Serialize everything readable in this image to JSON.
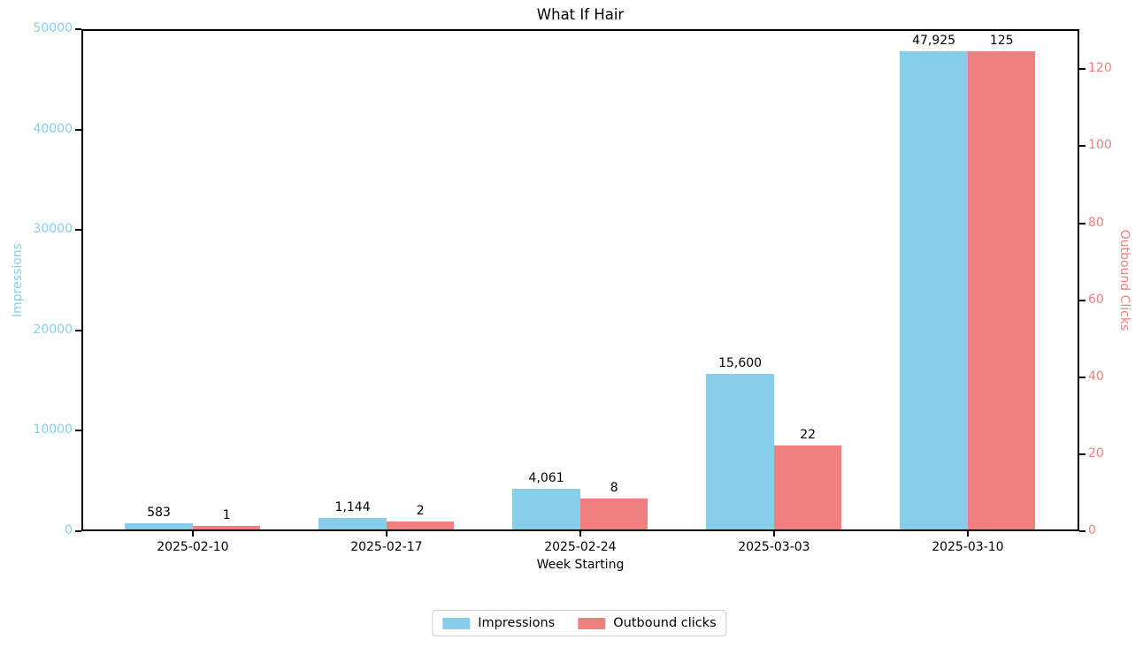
{
  "title": "What If Hair",
  "axes": {
    "x_label": "Week Starting",
    "left": {
      "label": "Impressions",
      "color": "#87CEEB",
      "ticks": [
        "0",
        "10000",
        "20000",
        "30000",
        "40000",
        "50000"
      ],
      "tick_values": [
        0,
        10000,
        20000,
        30000,
        40000,
        50000
      ],
      "max": 50000
    },
    "right": {
      "label": "Outbound Clicks",
      "color": "#F08080",
      "ticks": [
        "0",
        "20",
        "40",
        "60",
        "80",
        "100",
        "120"
      ],
      "tick_values": [
        0,
        20,
        40,
        60,
        80,
        100,
        120
      ],
      "max": 130.4
    }
  },
  "chart_data": {
    "type": "bar",
    "title": "What If Hair",
    "xlabel": "Week Starting",
    "categories": [
      "2025-02-10",
      "2025-02-17",
      "2025-02-24",
      "2025-03-03",
      "2025-03-10"
    ],
    "series": [
      {
        "name": "Impressions",
        "axis": "left",
        "color": "#87CEEB",
        "values": [
          583,
          1144,
          4061,
          15600,
          47925
        ],
        "value_labels": [
          "583",
          "1,144",
          "4,061",
          "15,600",
          "47,925"
        ]
      },
      {
        "name": "Outbound clicks",
        "axis": "right",
        "color": "#F08080",
        "values": [
          1,
          2,
          8,
          22,
          125
        ],
        "value_labels": [
          "1",
          "2",
          "8",
          "22",
          "125"
        ]
      }
    ],
    "ylim_left": [
      0,
      50000
    ],
    "ylim_right": [
      0,
      130.4
    ],
    "grid": false,
    "legend_position": "bottom-center"
  },
  "legend": {
    "items": [
      {
        "label": "Impressions",
        "color": "#87CEEB"
      },
      {
        "label": "Outbound clicks",
        "color": "#F08080"
      }
    ]
  }
}
